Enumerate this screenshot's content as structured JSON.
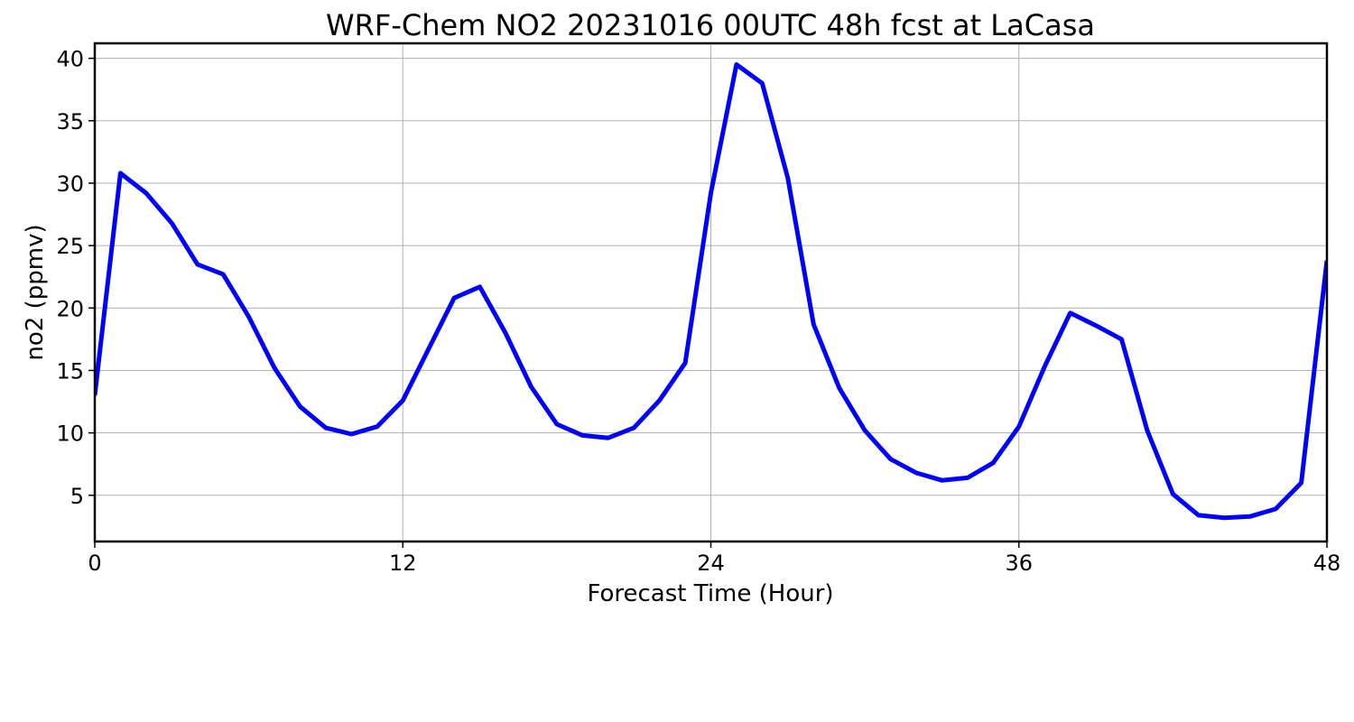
{
  "chart_data": {
    "type": "line",
    "title": "WRF-Chem NO2  20231016 00UTC 48h fcst at LaCasa",
    "xlabel": "Forecast Time (Hour)",
    "ylabel": "no2  (ppmv)",
    "xlim": [
      0,
      48
    ],
    "ylim": [
      1.3,
      41.2
    ],
    "xticks": [
      0,
      12,
      24,
      36,
      48
    ],
    "yticks": [
      5,
      10,
      15,
      20,
      25,
      30,
      35,
      40
    ],
    "grid": true,
    "series": [
      {
        "color": "#0000ff",
        "x": [
          0,
          1,
          2,
          3,
          4,
          5,
          6,
          7,
          8,
          9,
          10,
          11,
          12,
          13,
          14,
          15,
          16,
          17,
          18,
          19,
          20,
          21,
          22,
          23,
          24,
          25,
          26,
          27,
          28,
          29,
          30,
          31,
          32,
          33,
          34,
          35,
          36,
          37,
          38,
          39,
          40,
          41,
          42,
          43,
          44,
          45,
          46,
          47,
          48
        ],
        "values": [
          13.0,
          30.8,
          29.2,
          26.8,
          23.5,
          22.7,
          19.3,
          15.2,
          12.1,
          10.4,
          9.9,
          10.5,
          12.6,
          16.7,
          20.8,
          21.7,
          18.0,
          13.7,
          10.7,
          9.8,
          9.6,
          10.4,
          12.6,
          15.6,
          29.2,
          39.5,
          38.0,
          30.4,
          18.7,
          13.6,
          10.2,
          7.9,
          6.8,
          6.2,
          6.4,
          7.6,
          10.5,
          15.3,
          19.6,
          18.6,
          17.5,
          10.2,
          5.1,
          3.4,
          3.2,
          3.3,
          3.9,
          6.0,
          23.8
        ]
      }
    ]
  }
}
